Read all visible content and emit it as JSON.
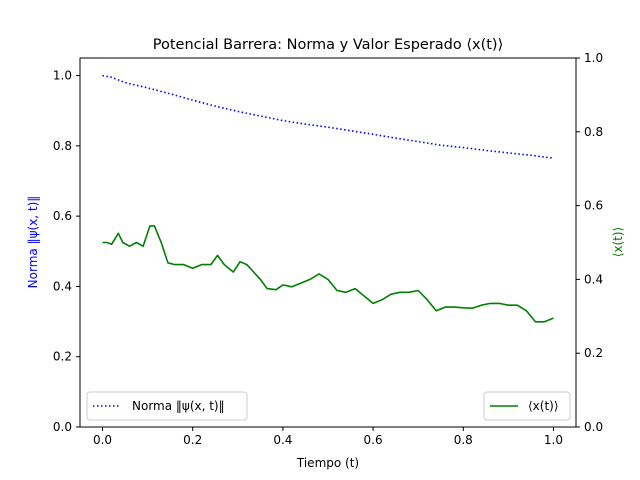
{
  "chart_data": {
    "type": "line",
    "title": "Potencial Barrera: Norma y Valor Esperado ⟨x(t)⟩",
    "xlabel": "Tiempo (t)",
    "ylabel_left": "Norma ‖ψ(x, t)‖",
    "ylabel_right": "⟨x(t)⟩",
    "xlim": [
      -0.05,
      1.05
    ],
    "ylim_left": [
      0.0,
      1.05
    ],
    "ylim_right": [
      0.0,
      1.0
    ],
    "xticks": [
      "0.0",
      "0.2",
      "0.4",
      "0.6",
      "0.8",
      "1.0"
    ],
    "yticks_left": [
      "0.0",
      "0.2",
      "0.4",
      "0.6",
      "0.8",
      "1.0"
    ],
    "yticks_right": [
      "0.0",
      "0.2",
      "0.4",
      "0.6",
      "0.8",
      "1.0"
    ],
    "grid": false,
    "series": [
      {
        "name": "Norma ‖ψ(x, t)‖",
        "axis": "left",
        "color": "#0000ff",
        "style": "dotted",
        "legend_position": "lower-left",
        "x": [
          0.0,
          0.02,
          0.05,
          0.1,
          0.15,
          0.2,
          0.25,
          0.3,
          0.35,
          0.4,
          0.45,
          0.5,
          0.55,
          0.6,
          0.65,
          0.7,
          0.75,
          0.8,
          0.85,
          0.9,
          0.95,
          1.0
        ],
        "y": [
          1.0,
          0.995,
          0.98,
          0.965,
          0.948,
          0.93,
          0.913,
          0.898,
          0.885,
          0.872,
          0.862,
          0.853,
          0.843,
          0.833,
          0.822,
          0.812,
          0.802,
          0.795,
          0.787,
          0.78,
          0.773,
          0.765
        ]
      },
      {
        "name": "⟨x(t)⟩",
        "axis": "right",
        "color": "#008000",
        "style": "solid",
        "legend_position": "lower-right",
        "x": [
          0.0,
          0.01,
          0.02,
          0.035,
          0.045,
          0.06,
          0.075,
          0.09,
          0.105,
          0.115,
          0.13,
          0.145,
          0.16,
          0.18,
          0.2,
          0.22,
          0.24,
          0.255,
          0.27,
          0.29,
          0.305,
          0.32,
          0.335,
          0.35,
          0.365,
          0.385,
          0.4,
          0.42,
          0.44,
          0.46,
          0.48,
          0.5,
          0.52,
          0.54,
          0.56,
          0.58,
          0.6,
          0.62,
          0.64,
          0.66,
          0.68,
          0.7,
          0.72,
          0.74,
          0.76,
          0.78,
          0.8,
          0.82,
          0.84,
          0.86,
          0.88,
          0.9,
          0.92,
          0.94,
          0.96,
          0.98,
          1.0
        ],
        "y": [
          0.5,
          0.5,
          0.495,
          0.525,
          0.5,
          0.49,
          0.5,
          0.49,
          0.545,
          0.545,
          0.5,
          0.445,
          0.44,
          0.44,
          0.43,
          0.44,
          0.44,
          0.465,
          0.44,
          0.42,
          0.448,
          0.44,
          0.42,
          0.4,
          0.375,
          0.372,
          0.385,
          0.38,
          0.39,
          0.4,
          0.415,
          0.4,
          0.37,
          0.365,
          0.375,
          0.355,
          0.335,
          0.345,
          0.36,
          0.365,
          0.365,
          0.37,
          0.345,
          0.315,
          0.325,
          0.325,
          0.323,
          0.322,
          0.33,
          0.335,
          0.335,
          0.33,
          0.33,
          0.315,
          0.285,
          0.285,
          0.295
        ]
      }
    ]
  }
}
